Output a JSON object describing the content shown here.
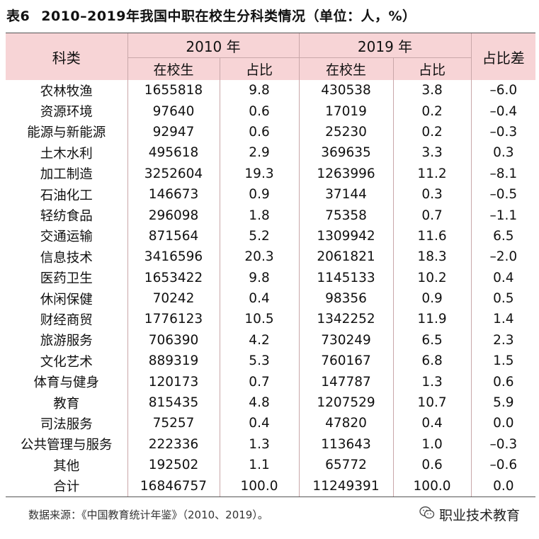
{
  "title": {
    "number": "表6",
    "text": "2010–2019年我国中职在校生分科类情况（单位：人，%）"
  },
  "header": {
    "category": "科类",
    "year1": "2010 年",
    "year2": "2019 年",
    "diff": "占比差",
    "sub": [
      "在校生",
      "占比",
      "在校生",
      "占比"
    ]
  },
  "rows": [
    [
      "农林牧渔",
      "1655818",
      "9.8",
      "430538",
      "3.8",
      "–6.0"
    ],
    [
      "资源环境",
      "97640",
      "0.6",
      "17019",
      "0.2",
      "–0.4"
    ],
    [
      "能源与新能源",
      "92947",
      "0.6",
      "25230",
      "0.2",
      "–0.3"
    ],
    [
      "土木水利",
      "495618",
      "2.9",
      "369635",
      "3.3",
      "0.3"
    ],
    [
      "加工制造",
      "3252604",
      "19.3",
      "1263996",
      "11.2",
      "–8.1"
    ],
    [
      "石油化工",
      "146673",
      "0.9",
      "37144",
      "0.3",
      "–0.5"
    ],
    [
      "轻纺食品",
      "296098",
      "1.8",
      "75358",
      "0.7",
      "–1.1"
    ],
    [
      "交通运输",
      "871564",
      "5.2",
      "1309942",
      "11.6",
      "6.5"
    ],
    [
      "信息技术",
      "3416596",
      "20.3",
      "2061821",
      "18.3",
      "–2.0"
    ],
    [
      "医药卫生",
      "1653422",
      "9.8",
      "1145133",
      "10.2",
      "0.4"
    ],
    [
      "休闲保健",
      "70242",
      "0.4",
      "98356",
      "0.9",
      "0.5"
    ],
    [
      "财经商贸",
      "1776123",
      "10.5",
      "1342252",
      "11.9",
      "1.4"
    ],
    [
      "旅游服务",
      "706390",
      "4.2",
      "730249",
      "6.5",
      "2.3"
    ],
    [
      "文化艺术",
      "889319",
      "5.3",
      "760167",
      "6.8",
      "1.5"
    ],
    [
      "体育与健身",
      "120173",
      "0.7",
      "147787",
      "1.3",
      "0.6"
    ],
    [
      "教育",
      "815435",
      "4.8",
      "1207529",
      "10.7",
      "5.9"
    ],
    [
      "司法服务",
      "75257",
      "0.4",
      "47820",
      "0.4",
      "0.0"
    ],
    [
      "公共管理与服务",
      "222336",
      "1.3",
      "113643",
      "1.0",
      "–0.3"
    ],
    [
      "其他",
      "192502",
      "1.1",
      "65772",
      "0.6",
      "–0.6"
    ],
    [
      "合计",
      "16846757",
      "100.0",
      "11249391",
      "100.0",
      "0.0"
    ]
  ],
  "source": "数据来源：《中国教育统计年鉴》（2010、2019）。",
  "brand": {
    "text": "职业技术教育",
    "icon": "wechat-icon"
  }
}
